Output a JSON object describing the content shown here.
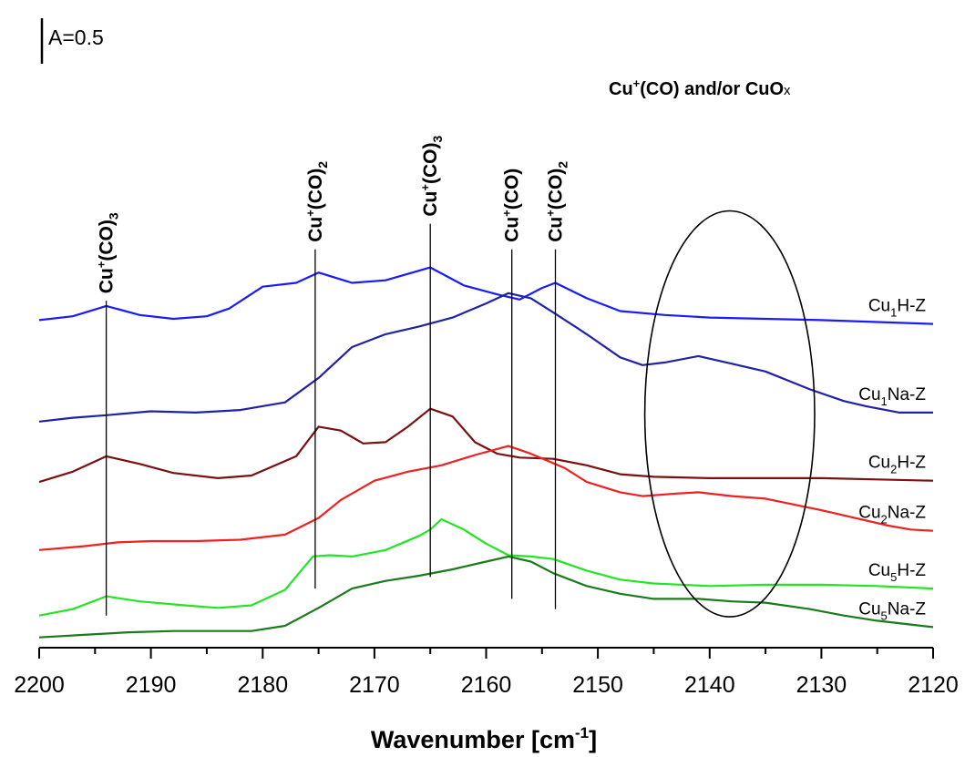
{
  "chart_data": {
    "type": "line",
    "xlabel": {
      "main": "Wavenumber [cm",
      "sup": "-1",
      "end": "]"
    },
    "ylabel": "",
    "xlim": [
      2200,
      2120
    ],
    "x_reversed": true,
    "ylim": [
      0,
      4.9
    ],
    "y_ticks_shown": false,
    "grid": false,
    "legend": "inline-right",
    "x_ticks": [
      2200,
      2190,
      2180,
      2170,
      2160,
      2150,
      2140,
      2130,
      2120
    ],
    "scale_bar": {
      "text": "A=0.5",
      "value": 0.5
    },
    "peak_markers": [
      {
        "x": 2194,
        "main": "Cu",
        "sup": "+",
        "mid": "(CO)",
        "sub": "3",
        "line_top": 2.7,
        "line_bottom": 0.25
      },
      {
        "x": 2175.3,
        "main": "Cu",
        "sup": "+",
        "mid": "(CO)",
        "sub": "2",
        "line_top": 3.1,
        "line_bottom": 0.46
      },
      {
        "x": 2165,
        "main": "Cu",
        "sup": "+",
        "mid": "(CO)",
        "sub": "3",
        "line_top": 3.3,
        "line_bottom": 0.55
      },
      {
        "x": 2157.7,
        "main": "Cu",
        "sup": "+",
        "mid": "(CO)",
        "sub": "",
        "line_top": 3.1,
        "line_bottom": 0.38
      },
      {
        "x": 2153.8,
        "main": "Cu",
        "sup": "+",
        "mid": "(CO)",
        "sub": "2",
        "line_top": 3.1,
        "line_bottom": 0.3
      }
    ],
    "region_annotation": {
      "label": {
        "pre": "Cu",
        "sup": "+",
        "post": "(CO)  and/or CuO",
        "suffix": "x"
      },
      "center_x": 2138.2,
      "center_y": 1.82,
      "half_width_x": 7.6,
      "half_height_y": 1.58
    },
    "series": [
      {
        "name": {
          "a": "Cu",
          "sub": "1",
          "b": "H-Z"
        },
        "color": "#1a1aff",
        "points": [
          [
            2200,
            2.55
          ],
          [
            2197,
            2.58
          ],
          [
            2194,
            2.66
          ],
          [
            2191,
            2.59
          ],
          [
            2188,
            2.56
          ],
          [
            2185,
            2.58
          ],
          [
            2183,
            2.64
          ],
          [
            2180,
            2.81
          ],
          [
            2177,
            2.84
          ],
          [
            2175,
            2.92
          ],
          [
            2172,
            2.84
          ],
          [
            2169,
            2.86
          ],
          [
            2165,
            2.96
          ],
          [
            2162,
            2.82
          ],
          [
            2159,
            2.75
          ],
          [
            2157,
            2.71
          ],
          [
            2155,
            2.8
          ],
          [
            2153.8,
            2.84
          ],
          [
            2151,
            2.72
          ],
          [
            2148,
            2.62
          ],
          [
            2144,
            2.59
          ],
          [
            2140,
            2.57
          ],
          [
            2130,
            2.55
          ],
          [
            2120,
            2.52
          ]
        ]
      },
      {
        "name": {
          "a": "Cu",
          "sub": "1",
          "b": "Na-Z"
        },
        "color": "#1f22a8",
        "points": [
          [
            2200,
            1.76
          ],
          [
            2197,
            1.79
          ],
          [
            2194,
            1.81
          ],
          [
            2190,
            1.84
          ],
          [
            2186,
            1.83
          ],
          [
            2182,
            1.85
          ],
          [
            2178,
            1.91
          ],
          [
            2175,
            2.1
          ],
          [
            2172,
            2.34
          ],
          [
            2169,
            2.44
          ],
          [
            2166,
            2.5
          ],
          [
            2163,
            2.57
          ],
          [
            2160,
            2.68
          ],
          [
            2158,
            2.76
          ],
          [
            2156,
            2.72
          ],
          [
            2154,
            2.61
          ],
          [
            2151,
            2.44
          ],
          [
            2148,
            2.26
          ],
          [
            2146,
            2.2
          ],
          [
            2144,
            2.22
          ],
          [
            2141,
            2.27
          ],
          [
            2138,
            2.21
          ],
          [
            2135,
            2.15
          ],
          [
            2131,
            2.01
          ],
          [
            2128,
            1.92
          ],
          [
            2126,
            1.88
          ],
          [
            2123,
            1.83
          ],
          [
            2120,
            1.83
          ]
        ]
      },
      {
        "name": {
          "a": "Cu",
          "sub": "2",
          "b": "H-Z"
        },
        "color": "#7a1010",
        "points": [
          [
            2200,
            1.29
          ],
          [
            2197,
            1.37
          ],
          [
            2194,
            1.49
          ],
          [
            2191,
            1.43
          ],
          [
            2188,
            1.36
          ],
          [
            2184,
            1.32
          ],
          [
            2181,
            1.34
          ],
          [
            2177,
            1.49
          ],
          [
            2175,
            1.72
          ],
          [
            2173,
            1.69
          ],
          [
            2171,
            1.59
          ],
          [
            2169,
            1.6
          ],
          [
            2167,
            1.72
          ],
          [
            2165,
            1.86
          ],
          [
            2163,
            1.8
          ],
          [
            2161,
            1.6
          ],
          [
            2159,
            1.51
          ],
          [
            2157,
            1.48
          ],
          [
            2154,
            1.47
          ],
          [
            2151,
            1.42
          ],
          [
            2148,
            1.35
          ],
          [
            2145,
            1.33
          ],
          [
            2140,
            1.32
          ],
          [
            2130,
            1.32
          ],
          [
            2125,
            1.31
          ],
          [
            2120,
            1.3
          ]
        ]
      },
      {
        "name": {
          "a": "Cu",
          "sub": "2",
          "b": "Na-Z"
        },
        "color": "#ef2020",
        "points": [
          [
            2200,
            0.76
          ],
          [
            2196,
            0.79
          ],
          [
            2193,
            0.82
          ],
          [
            2190,
            0.83
          ],
          [
            2186,
            0.83
          ],
          [
            2182,
            0.84
          ],
          [
            2178,
            0.88
          ],
          [
            2175,
            1.01
          ],
          [
            2173,
            1.15
          ],
          [
            2170,
            1.3
          ],
          [
            2167,
            1.37
          ],
          [
            2164,
            1.42
          ],
          [
            2161,
            1.5
          ],
          [
            2158,
            1.57
          ],
          [
            2156,
            1.51
          ],
          [
            2153,
            1.4
          ],
          [
            2151,
            1.29
          ],
          [
            2148,
            1.21
          ],
          [
            2146,
            1.18
          ],
          [
            2143,
            1.2
          ],
          [
            2141,
            1.21
          ],
          [
            2138,
            1.18
          ],
          [
            2135,
            1.16
          ],
          [
            2130,
            1.07
          ],
          [
            2127,
            1.01
          ],
          [
            2124,
            0.95
          ],
          [
            2122,
            0.92
          ],
          [
            2120,
            0.91
          ]
        ]
      },
      {
        "name": {
          "a": "Cu",
          "sub": "5",
          "b": "H-Z"
        },
        "color": "#22e622",
        "points": [
          [
            2200,
            0.25
          ],
          [
            2197,
            0.3
          ],
          [
            2194,
            0.4
          ],
          [
            2191,
            0.36
          ],
          [
            2187,
            0.33
          ],
          [
            2184,
            0.31
          ],
          [
            2181,
            0.33
          ],
          [
            2178,
            0.45
          ],
          [
            2175.5,
            0.71
          ],
          [
            2174,
            0.72
          ],
          [
            2172,
            0.71
          ],
          [
            2169,
            0.76
          ],
          [
            2166,
            0.87
          ],
          [
            2165,
            0.92
          ],
          [
            2164,
            1.0
          ],
          [
            2162,
            0.92
          ],
          [
            2160,
            0.81
          ],
          [
            2158,
            0.72
          ],
          [
            2156,
            0.71
          ],
          [
            2154,
            0.69
          ],
          [
            2151,
            0.6
          ],
          [
            2148,
            0.53
          ],
          [
            2145,
            0.5
          ],
          [
            2140,
            0.48
          ],
          [
            2135,
            0.49
          ],
          [
            2130,
            0.49
          ],
          [
            2125,
            0.48
          ],
          [
            2120,
            0.46
          ]
        ]
      },
      {
        "name": {
          "a": "Cu",
          "sub": "5",
          "b": "Na-Z"
        },
        "color": "#1b7a1b",
        "points": [
          [
            2200,
            0.08
          ],
          [
            2196,
            0.1
          ],
          [
            2192,
            0.12
          ],
          [
            2188,
            0.13
          ],
          [
            2184,
            0.13
          ],
          [
            2181,
            0.13
          ],
          [
            2178,
            0.17
          ],
          [
            2175,
            0.31
          ],
          [
            2172,
            0.46
          ],
          [
            2169,
            0.52
          ],
          [
            2166,
            0.56
          ],
          [
            2163,
            0.61
          ],
          [
            2160,
            0.67
          ],
          [
            2158,
            0.71
          ],
          [
            2156,
            0.67
          ],
          [
            2154,
            0.58
          ],
          [
            2151,
            0.48
          ],
          [
            2148,
            0.42
          ],
          [
            2145,
            0.38
          ],
          [
            2141,
            0.38
          ],
          [
            2138,
            0.36
          ],
          [
            2135,
            0.35
          ],
          [
            2131,
            0.3
          ],
          [
            2128,
            0.25
          ],
          [
            2125,
            0.21
          ],
          [
            2122,
            0.18
          ],
          [
            2120,
            0.16
          ]
        ]
      }
    ]
  }
}
